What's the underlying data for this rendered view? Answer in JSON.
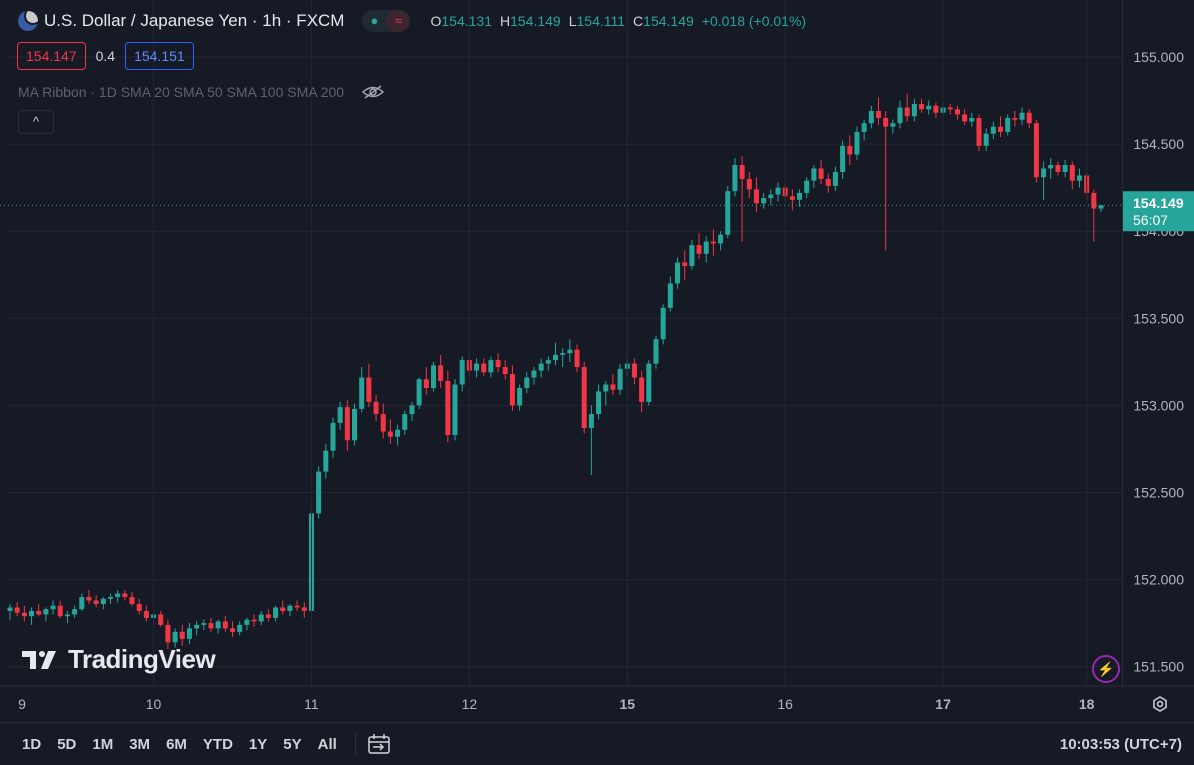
{
  "header": {
    "symbol_title": "U.S. Dollar / Japanese Yen · 1h · FXCM",
    "ohlc": {
      "o_label": "O",
      "o": "154.131",
      "h_label": "H",
      "h": "154.149",
      "l_label": "L",
      "l": "154.111",
      "c_label": "C",
      "c": "154.149",
      "change": "+0.018 (+0.01%)"
    }
  },
  "quotes": {
    "sell": "154.147",
    "spread": "0.4",
    "buy": "154.151"
  },
  "indicator": {
    "label": "MA Ribbon · 1D SMA 20 SMA 50 SMA 100 SMA 200"
  },
  "collapse_label": "^",
  "watermark": "TradingView",
  "price_label": {
    "value": "154.149",
    "countdown": "56:07"
  },
  "range_buttons": [
    "1D",
    "5D",
    "1M",
    "3M",
    "6M",
    "YTD",
    "1Y",
    "5Y",
    "All"
  ],
  "clock": "10:03:53 (UTC+7)",
  "colors": {
    "up": "#26a69a",
    "down": "#f23645",
    "background": "#161a25",
    "grid": "#242733"
  },
  "chart_data": {
    "type": "candlestick",
    "title": "U.S. Dollar / Japanese Yen · 1h · FXCM",
    "y_ticks": [
      "155.000",
      "154.500",
      "154.000",
      "153.500",
      "153.000",
      "152.500",
      "152.000",
      "151.500"
    ],
    "ylim": [
      151.45,
      155.17
    ],
    "x_ticks": [
      "9",
      "10",
      "11",
      "12",
      "15",
      "16",
      "17",
      "18"
    ],
    "current_price": 154.149,
    "candles": [
      [
        151.82,
        151.86,
        151.77,
        151.84
      ],
      [
        151.84,
        151.87,
        151.79,
        151.81
      ],
      [
        151.81,
        151.85,
        151.76,
        151.79
      ],
      [
        151.79,
        151.84,
        151.74,
        151.82
      ],
      [
        151.82,
        151.86,
        151.79,
        151.8
      ],
      [
        151.8,
        151.84,
        151.76,
        151.83
      ],
      [
        151.83,
        151.88,
        151.8,
        151.85
      ],
      [
        151.85,
        151.88,
        151.78,
        151.79
      ],
      [
        151.79,
        151.82,
        151.75,
        151.8
      ],
      [
        151.8,
        151.85,
        151.78,
        151.83
      ],
      [
        151.83,
        151.92,
        151.82,
        151.9
      ],
      [
        151.9,
        151.94,
        151.86,
        151.88
      ],
      [
        151.88,
        151.91,
        151.84,
        151.86
      ],
      [
        151.86,
        151.9,
        151.83,
        151.89
      ],
      [
        151.89,
        151.92,
        151.86,
        151.9
      ],
      [
        151.9,
        151.94,
        151.87,
        151.92
      ],
      [
        151.92,
        151.94,
        151.88,
        151.9
      ],
      [
        151.9,
        151.93,
        151.85,
        151.86
      ],
      [
        151.86,
        151.89,
        151.8,
        151.82
      ],
      [
        151.82,
        151.85,
        151.76,
        151.78
      ],
      [
        151.78,
        151.82,
        151.74,
        151.8
      ],
      [
        151.8,
        151.82,
        151.73,
        151.74
      ],
      [
        151.74,
        151.77,
        151.6,
        151.64
      ],
      [
        151.64,
        151.72,
        151.61,
        151.7
      ],
      [
        151.7,
        151.74,
        151.62,
        151.66
      ],
      [
        151.66,
        151.75,
        151.63,
        151.72
      ],
      [
        151.72,
        151.76,
        151.68,
        151.74
      ],
      [
        151.74,
        151.77,
        151.71,
        151.75
      ],
      [
        151.75,
        151.78,
        151.7,
        151.72
      ],
      [
        151.72,
        151.77,
        151.69,
        151.76
      ],
      [
        151.76,
        151.79,
        151.7,
        151.72
      ],
      [
        151.72,
        151.76,
        151.67,
        151.7
      ],
      [
        151.7,
        151.76,
        151.68,
        151.74
      ],
      [
        151.74,
        151.78,
        151.71,
        151.77
      ],
      [
        151.77,
        151.8,
        151.73,
        151.76
      ],
      [
        151.76,
        151.82,
        151.74,
        151.8
      ],
      [
        151.8,
        151.83,
        151.76,
        151.78
      ],
      [
        151.78,
        151.85,
        151.76,
        151.84
      ],
      [
        151.84,
        151.88,
        151.8,
        151.82
      ],
      [
        151.82,
        151.86,
        151.79,
        151.85
      ],
      [
        151.85,
        151.88,
        151.82,
        151.84
      ],
      [
        151.84,
        151.87,
        151.78,
        151.82
      ],
      [
        151.82,
        152.4,
        151.8,
        152.38
      ],
      [
        152.38,
        152.65,
        152.35,
        152.62
      ],
      [
        152.62,
        152.78,
        152.58,
        152.74
      ],
      [
        152.74,
        152.93,
        152.7,
        152.9
      ],
      [
        152.9,
        153.02,
        152.86,
        152.99
      ],
      [
        152.99,
        153.03,
        152.74,
        152.8
      ],
      [
        152.8,
        153.01,
        152.77,
        152.98
      ],
      [
        152.98,
        153.22,
        152.96,
        153.16
      ],
      [
        153.16,
        153.24,
        152.99,
        153.02
      ],
      [
        153.02,
        153.06,
        152.91,
        152.95
      ],
      [
        152.95,
        153.01,
        152.81,
        152.85
      ],
      [
        152.85,
        152.92,
        152.78,
        152.82
      ],
      [
        152.82,
        152.89,
        152.77,
        152.86
      ],
      [
        152.86,
        152.97,
        152.83,
        152.95
      ],
      [
        152.95,
        153.02,
        152.91,
        153.0
      ],
      [
        153.0,
        153.16,
        152.98,
        153.15
      ],
      [
        153.15,
        153.22,
        153.06,
        153.1
      ],
      [
        153.1,
        153.25,
        153.08,
        153.23
      ],
      [
        153.23,
        153.29,
        153.1,
        153.14
      ],
      [
        153.14,
        153.2,
        152.79,
        152.83
      ],
      [
        152.83,
        153.15,
        152.8,
        153.12
      ],
      [
        153.12,
        153.28,
        153.08,
        153.26
      ],
      [
        153.26,
        153.29,
        153.17,
        153.2
      ],
      [
        153.2,
        153.27,
        153.16,
        153.24
      ],
      [
        153.24,
        153.27,
        153.17,
        153.19
      ],
      [
        153.19,
        153.28,
        153.16,
        153.26
      ],
      [
        153.26,
        153.3,
        153.19,
        153.22
      ],
      [
        153.22,
        153.26,
        153.15,
        153.18
      ],
      [
        153.18,
        153.23,
        152.97,
        153.0
      ],
      [
        153.0,
        153.12,
        152.97,
        153.1
      ],
      [
        153.1,
        153.19,
        153.07,
        153.16
      ],
      [
        153.16,
        153.22,
        153.12,
        153.2
      ],
      [
        153.2,
        153.27,
        153.16,
        153.24
      ],
      [
        153.24,
        153.28,
        153.2,
        153.26
      ],
      [
        153.26,
        153.36,
        153.23,
        153.29
      ],
      [
        153.29,
        153.33,
        153.22,
        153.3
      ],
      [
        153.3,
        153.38,
        153.25,
        153.32
      ],
      [
        153.32,
        153.35,
        153.19,
        153.22
      ],
      [
        153.22,
        153.25,
        152.84,
        152.87
      ],
      [
        152.87,
        153.0,
        152.6,
        152.95
      ],
      [
        152.95,
        153.12,
        152.92,
        153.08
      ],
      [
        153.08,
        153.14,
        153.0,
        153.12
      ],
      [
        153.12,
        153.18,
        153.06,
        153.09
      ],
      [
        153.09,
        153.24,
        153.06,
        153.21
      ],
      [
        153.21,
        153.27,
        153.16,
        153.24
      ],
      [
        153.24,
        153.27,
        153.12,
        153.16
      ],
      [
        153.16,
        153.2,
        152.96,
        153.02
      ],
      [
        153.02,
        153.26,
        153.0,
        153.24
      ],
      [
        153.24,
        153.4,
        153.21,
        153.38
      ],
      [
        153.38,
        153.58,
        153.35,
        153.56
      ],
      [
        153.56,
        153.74,
        153.54,
        153.7
      ],
      [
        153.7,
        153.85,
        153.67,
        153.82
      ],
      [
        153.82,
        153.89,
        153.72,
        153.8
      ],
      [
        153.8,
        153.95,
        153.78,
        153.92
      ],
      [
        153.92,
        153.99,
        153.84,
        153.87
      ],
      [
        153.87,
        153.97,
        153.82,
        153.94
      ],
      [
        153.94,
        154.01,
        153.86,
        153.93
      ],
      [
        153.93,
        154.0,
        153.89,
        153.98
      ],
      [
        153.98,
        154.26,
        153.96,
        154.23
      ],
      [
        154.23,
        154.42,
        154.2,
        154.38
      ],
      [
        154.38,
        154.43,
        153.94,
        154.3
      ],
      [
        154.3,
        154.34,
        154.19,
        154.24
      ],
      [
        154.24,
        154.31,
        154.11,
        154.16
      ],
      [
        154.16,
        154.22,
        154.13,
        154.19
      ],
      [
        154.19,
        154.24,
        154.15,
        154.21
      ],
      [
        154.21,
        154.28,
        154.17,
        154.25
      ],
      [
        154.25,
        154.27,
        154.17,
        154.2
      ],
      [
        154.2,
        154.24,
        154.12,
        154.18
      ],
      [
        154.18,
        154.24,
        154.14,
        154.22
      ],
      [
        154.22,
        154.31,
        154.19,
        154.29
      ],
      [
        154.29,
        154.38,
        154.25,
        154.36
      ],
      [
        154.36,
        154.41,
        154.27,
        154.3
      ],
      [
        154.3,
        154.33,
        154.22,
        154.26
      ],
      [
        154.26,
        154.37,
        154.23,
        154.34
      ],
      [
        154.34,
        154.52,
        154.3,
        154.49
      ],
      [
        154.49,
        154.55,
        154.38,
        154.44
      ],
      [
        154.44,
        154.6,
        154.41,
        154.57
      ],
      [
        154.57,
        154.64,
        154.52,
        154.62
      ],
      [
        154.62,
        154.72,
        154.59,
        154.69
      ],
      [
        154.69,
        154.77,
        154.61,
        154.65
      ],
      [
        154.65,
        154.69,
        153.89,
        154.6
      ],
      [
        154.6,
        154.64,
        154.56,
        154.62
      ],
      [
        154.62,
        154.75,
        154.59,
        154.71
      ],
      [
        154.71,
        154.79,
        154.63,
        154.66
      ],
      [
        154.66,
        154.76,
        154.63,
        154.73
      ],
      [
        154.73,
        154.76,
        154.68,
        154.7
      ],
      [
        154.7,
        154.75,
        154.67,
        154.72
      ],
      [
        154.72,
        154.74,
        154.65,
        154.68
      ],
      [
        154.68,
        154.74,
        154.66,
        154.71
      ],
      [
        154.71,
        154.73,
        154.67,
        154.7
      ],
      [
        154.7,
        154.72,
        154.64,
        154.67
      ],
      [
        154.67,
        154.7,
        154.61,
        154.63
      ],
      [
        154.63,
        154.68,
        154.6,
        154.65
      ],
      [
        154.65,
        154.67,
        154.46,
        154.49
      ],
      [
        154.49,
        154.59,
        154.46,
        154.56
      ],
      [
        154.56,
        154.63,
        154.53,
        154.6
      ],
      [
        154.6,
        154.66,
        154.54,
        154.57
      ],
      [
        154.57,
        154.67,
        154.55,
        154.65
      ],
      [
        154.65,
        154.69,
        154.6,
        154.64
      ],
      [
        154.64,
        154.71,
        154.61,
        154.68
      ],
      [
        154.68,
        154.7,
        154.59,
        154.62
      ],
      [
        154.62,
        154.64,
        154.28,
        154.31
      ],
      [
        154.31,
        154.4,
        154.18,
        154.36
      ],
      [
        154.36,
        154.42,
        154.3,
        154.38
      ],
      [
        154.38,
        154.4,
        154.32,
        154.34
      ],
      [
        154.34,
        154.41,
        154.31,
        154.38
      ],
      [
        154.38,
        154.4,
        154.24,
        154.29
      ],
      [
        154.29,
        154.36,
        154.25,
        154.32
      ],
      [
        154.32,
        154.34,
        154.18,
        154.22
      ],
      [
        154.22,
        154.24,
        153.94,
        154.13
      ],
      [
        154.13,
        154.15,
        154.11,
        154.149
      ]
    ]
  }
}
